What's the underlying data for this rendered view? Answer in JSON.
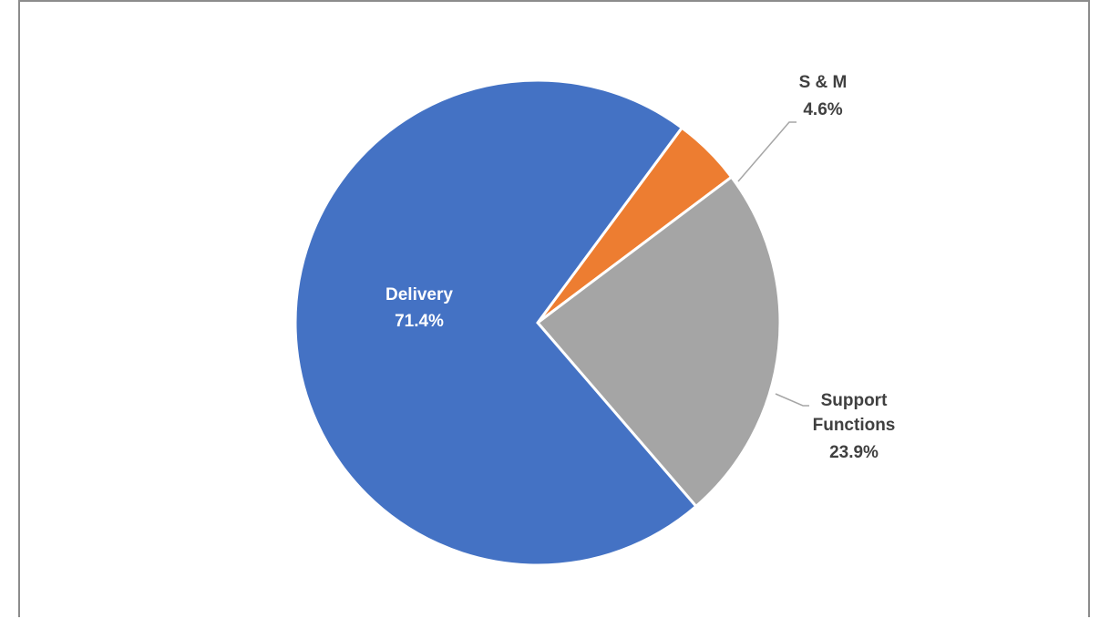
{
  "chart_data": {
    "type": "pie",
    "title": "",
    "slices": [
      {
        "label": "Delivery",
        "value": 71.4,
        "value_label": "71.4%",
        "color": "#4472C4"
      },
      {
        "label": "S & M",
        "value": 4.6,
        "value_label": "4.6%",
        "color": "#ED7D31"
      },
      {
        "label": "Support Functions",
        "value": 23.9,
        "value_label": "23.9%",
        "color": "#A5A5A5"
      }
    ],
    "legend": "none",
    "label_color_inside": "#ffffff",
    "label_color_outside": "#404040"
  }
}
